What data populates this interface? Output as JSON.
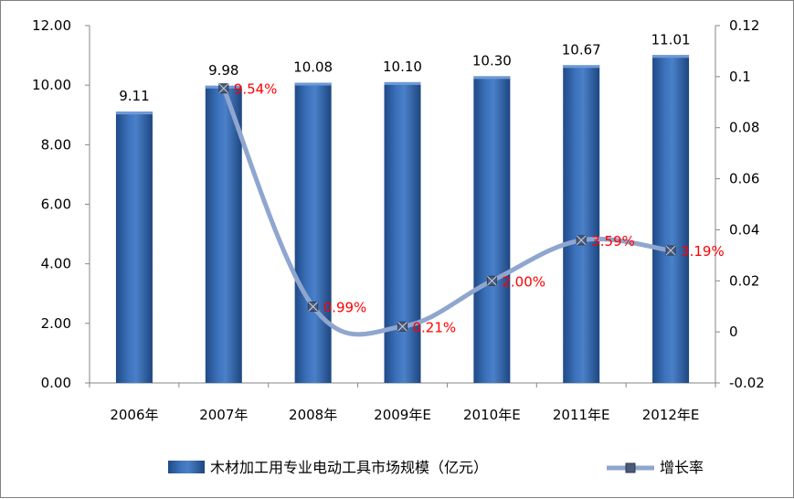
{
  "chart_data": {
    "type": "bar",
    "categories": [
      "2006年",
      "2007年",
      "2008年",
      "2009年E",
      "2010年E",
      "2011年E",
      "2012年E"
    ],
    "series": [
      {
        "name": "木材加工用专业电动工具市场规模（亿元）",
        "type": "bar",
        "axis": "left",
        "values": [
          9.11,
          9.98,
          10.08,
          10.1,
          10.3,
          10.67,
          11.01
        ],
        "labels": [
          "9.11",
          "9.98",
          "10.08",
          "10.10",
          "10.30",
          "10.67",
          "11.01"
        ],
        "color": "#2f5f9e"
      },
      {
        "name": "增长率",
        "type": "line",
        "axis": "right",
        "values": [
          null,
          0.0954,
          0.0099,
          0.0021,
          0.02,
          0.0359,
          0.0319
        ],
        "labels": [
          null,
          "9.54%",
          "0.99%",
          "0.21%",
          "2.00%",
          "3.59%",
          "3.19%"
        ],
        "color": "#8fa6cf",
        "label_color": "#ff0000"
      }
    ],
    "y_left": {
      "min": 0,
      "max": 12,
      "step": 2,
      "ticks": [
        "0.00",
        "2.00",
        "4.00",
        "6.00",
        "8.00",
        "10.00",
        "12.00"
      ]
    },
    "y_right": {
      "min": -0.02,
      "max": 0.12,
      "step": 0.02,
      "ticks": [
        "-0.02",
        "0",
        "0.02",
        "0.04",
        "0.06",
        "0.08",
        "0.1",
        "0.12"
      ]
    },
    "grid": false,
    "legend_position": "bottom"
  }
}
